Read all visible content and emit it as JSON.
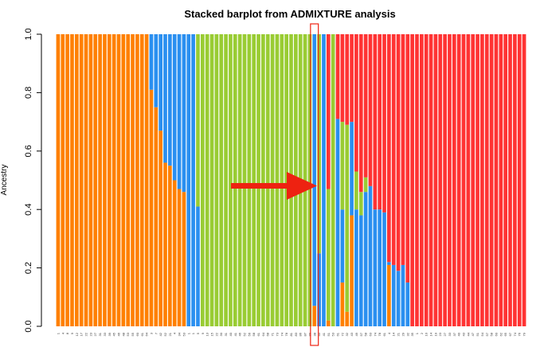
{
  "chart_data": {
    "type": "bar",
    "stacked": true,
    "title": "Stacked barplot from ADMIXTURE analysis",
    "xlabel": "",
    "ylabel": "Ancestry",
    "ylim": [
      0,
      1
    ],
    "yticks": [
      "0.0",
      "0.2",
      "0.4",
      "0.6",
      "0.8",
      "1.0"
    ],
    "colors": {
      "orange": "#ff8000",
      "blue": "#2a8ff0",
      "green": "#99cc33",
      "red": "#ff3333",
      "highlight": "#ee2211"
    },
    "legend": "none",
    "grid": false,
    "annotations": [
      {
        "kind": "arrow",
        "color": "#ee2211",
        "points_to": "sample 41"
      },
      {
        "kind": "box",
        "color": "#ee2211",
        "around": "sample 41"
      }
    ],
    "categories": [
      "1",
      "4",
      "8",
      "9",
      "12",
      "17",
      "22",
      "23",
      "27",
      "31",
      "33",
      "39",
      "45",
      "46",
      "48",
      "53",
      "55",
      "60",
      "61",
      "64",
      "3",
      "7",
      "42",
      "52",
      "21",
      "4",
      "34",
      "53",
      "1",
      "1",
      "5",
      "9",
      "13",
      "15",
      "22",
      "30",
      "31",
      "40",
      "41",
      "46",
      "52",
      "56",
      "58",
      "61",
      "64",
      "68",
      "71",
      "73",
      "74",
      "78",
      "81",
      "83",
      "86",
      "87",
      "89",
      "38",
      "45",
      "41",
      "51",
      "53",
      "61",
      "72",
      "32",
      "43",
      "49",
      "57",
      "58",
      "63",
      "74",
      "78",
      "61",
      "4",
      "14",
      "21",
      "29",
      "32",
      "35",
      "1",
      "2",
      "10",
      "14",
      "19",
      "23",
      "27",
      "33",
      "37",
      "40",
      "43",
      "44",
      "47",
      "51",
      "54",
      "57",
      "58",
      "60",
      "62",
      "65",
      "67",
      "74",
      "76",
      "79"
    ],
    "series": [
      {
        "color_key": "orange",
        "values": [
          1,
          1,
          1,
          1,
          1,
          1,
          1,
          1,
          1,
          1,
          1,
          1,
          1,
          1,
          1,
          1,
          1,
          1,
          1,
          1,
          0.81,
          0.75,
          0.67,
          0.56,
          0.55,
          0.5,
          0.47,
          0.46,
          0,
          0,
          0,
          0,
          0,
          0,
          0,
          0,
          0,
          0,
          0,
          0,
          0,
          0,
          0,
          0,
          0,
          0,
          0,
          0,
          0,
          0,
          0,
          0,
          0,
          0,
          0,
          0.07,
          0,
          0,
          0.02,
          0,
          0,
          0.15,
          0.05,
          0.38,
          0,
          0,
          0,
          0,
          0,
          0,
          0,
          0.21,
          0,
          0,
          0,
          0,
          0,
          0,
          0,
          0,
          0,
          0,
          0,
          0,
          0,
          0,
          0,
          0,
          0,
          0,
          0,
          0,
          0,
          0,
          0,
          0,
          0,
          0,
          0,
          0,
          0
        ]
      },
      {
        "color_key": "blue",
        "values": [
          0,
          0,
          0,
          0,
          0,
          0,
          0,
          0,
          0,
          0,
          0,
          0,
          0,
          0,
          0,
          0,
          0,
          0,
          0,
          0,
          0.19,
          0.25,
          0.33,
          0.44,
          0.45,
          0.5,
          0.53,
          0.54,
          1,
          1,
          0.41,
          0,
          0,
          0,
          0,
          0,
          0,
          0,
          0,
          0,
          0,
          0,
          0,
          0,
          0,
          0,
          0,
          0,
          0,
          0,
          0,
          0,
          0,
          0,
          0,
          0.93,
          0.25,
          1,
          0,
          0,
          0.71,
          0.25,
          0,
          0.32,
          0.4,
          0.38,
          0.46,
          0.48,
          0.4,
          0.4,
          0.39,
          0.01,
          0.21,
          0.19,
          0.21,
          0.15,
          0,
          0,
          0,
          0,
          0,
          0,
          0,
          0,
          0,
          0,
          0,
          0,
          0,
          0,
          0,
          0,
          0,
          0,
          0,
          0,
          0,
          0,
          0,
          0,
          0
        ]
      },
      {
        "color_key": "green",
        "values": [
          0,
          0,
          0,
          0,
          0,
          0,
          0,
          0,
          0,
          0,
          0,
          0,
          0,
          0,
          0,
          0,
          0,
          0,
          0,
          0,
          0,
          0,
          0,
          0,
          0,
          0,
          0,
          0,
          0,
          0,
          0.59,
          1,
          1,
          1,
          1,
          1,
          1,
          1,
          1,
          1,
          1,
          1,
          1,
          1,
          1,
          1,
          1,
          1,
          1,
          1,
          1,
          1,
          1,
          1,
          1,
          0,
          0.75,
          0,
          0.45,
          1,
          0,
          0.3,
          0.64,
          0,
          0.13,
          0.08,
          0.05,
          0,
          0,
          0,
          0,
          0,
          0,
          0,
          0,
          0,
          0,
          0,
          0,
          0,
          0,
          0,
          0,
          0,
          0,
          0,
          0,
          0,
          0,
          0,
          0,
          0,
          0,
          0,
          0,
          0,
          0,
          0,
          0,
          0,
          0
        ]
      },
      {
        "color_key": "red",
        "values": [
          0,
          0,
          0,
          0,
          0,
          0,
          0,
          0,
          0,
          0,
          0,
          0,
          0,
          0,
          0,
          0,
          0,
          0,
          0,
          0,
          0,
          0,
          0,
          0,
          0,
          0,
          0,
          0,
          0,
          0,
          0,
          0,
          0,
          0,
          0,
          0,
          0,
          0,
          0,
          0,
          0,
          0,
          0,
          0,
          0,
          0,
          0,
          0,
          0,
          0,
          0,
          0,
          0,
          0,
          0,
          0,
          0,
          0,
          0.53,
          0,
          0.29,
          0.3,
          0.31,
          0.3,
          0.47,
          0.54,
          0.49,
          0.52,
          0.6,
          0.6,
          0.61,
          0.78,
          0.79,
          0.81,
          0.79,
          0.85,
          1,
          1,
          1,
          1,
          1,
          1,
          1,
          1,
          1,
          1,
          1,
          1,
          1,
          1,
          1,
          1,
          1,
          1,
          1,
          1,
          1,
          1,
          1,
          1,
          1
        ]
      }
    ]
  }
}
